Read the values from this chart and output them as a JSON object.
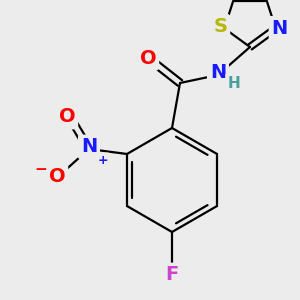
{
  "bg_color": "#ececec",
  "atom_colors": {
    "C": "#000000",
    "H": "#4a9e9e",
    "N": "#1a1aff",
    "O": "#ff0000",
    "F": "#cc44cc",
    "S": "#b8b800",
    "N_thiazole": "#1a1aff"
  },
  "bond_color": "#000000",
  "bond_width": 1.6,
  "font_size_atom": 14,
  "font_size_h": 11,
  "font_size_charge": 9
}
